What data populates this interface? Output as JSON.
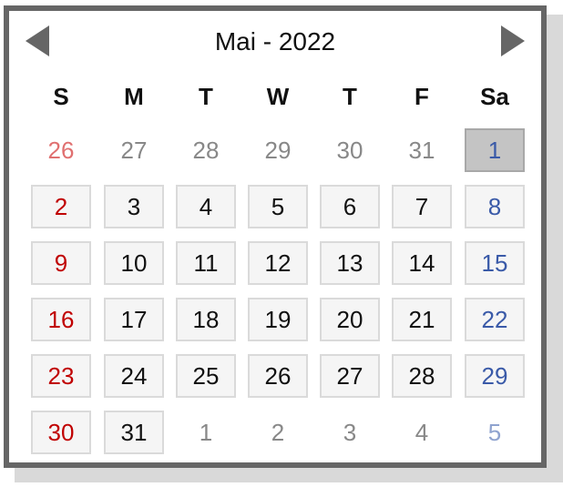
{
  "calendar": {
    "title": "Mai - 2022",
    "icons": {
      "prev": "triangle-left-icon",
      "next": "triangle-right-icon"
    },
    "weekdays": [
      "S",
      "M",
      "T",
      "W",
      "T",
      "F",
      "Sa"
    ],
    "weeks": [
      [
        {
          "day": "26",
          "current_month": false
        },
        {
          "day": "27",
          "current_month": false
        },
        {
          "day": "28",
          "current_month": false
        },
        {
          "day": "29",
          "current_month": false
        },
        {
          "day": "30",
          "current_month": false
        },
        {
          "day": "31",
          "current_month": false
        },
        {
          "day": "1",
          "current_month": true,
          "selected": true
        }
      ],
      [
        {
          "day": "2",
          "current_month": true
        },
        {
          "day": "3",
          "current_month": true
        },
        {
          "day": "4",
          "current_month": true
        },
        {
          "day": "5",
          "current_month": true
        },
        {
          "day": "6",
          "current_month": true
        },
        {
          "day": "7",
          "current_month": true
        },
        {
          "day": "8",
          "current_month": true
        }
      ],
      [
        {
          "day": "9",
          "current_month": true
        },
        {
          "day": "10",
          "current_month": true
        },
        {
          "day": "11",
          "current_month": true
        },
        {
          "day": "12",
          "current_month": true
        },
        {
          "day": "13",
          "current_month": true
        },
        {
          "day": "14",
          "current_month": true
        },
        {
          "day": "15",
          "current_month": true
        }
      ],
      [
        {
          "day": "16",
          "current_month": true
        },
        {
          "day": "17",
          "current_month": true
        },
        {
          "day": "18",
          "current_month": true
        },
        {
          "day": "19",
          "current_month": true
        },
        {
          "day": "20",
          "current_month": true
        },
        {
          "day": "21",
          "current_month": true
        },
        {
          "day": "22",
          "current_month": true
        }
      ],
      [
        {
          "day": "23",
          "current_month": true
        },
        {
          "day": "24",
          "current_month": true
        },
        {
          "day": "25",
          "current_month": true
        },
        {
          "day": "26",
          "current_month": true
        },
        {
          "day": "27",
          "current_month": true
        },
        {
          "day": "28",
          "current_month": true
        },
        {
          "day": "29",
          "current_month": true
        }
      ],
      [
        {
          "day": "30",
          "current_month": true
        },
        {
          "day": "31",
          "current_month": true
        },
        {
          "day": "1",
          "current_month": false
        },
        {
          "day": "2",
          "current_month": false
        },
        {
          "day": "3",
          "current_month": false
        },
        {
          "day": "4",
          "current_month": false
        },
        {
          "day": "5",
          "current_month": false
        }
      ]
    ]
  },
  "colors": {
    "frame_border": "#666666",
    "sunday": "#c00000",
    "saturday": "#3a5aa8",
    "outside_month": "#888888",
    "selected_bg": "#c4c4c4",
    "cell_bg": "#f5f5f5"
  }
}
